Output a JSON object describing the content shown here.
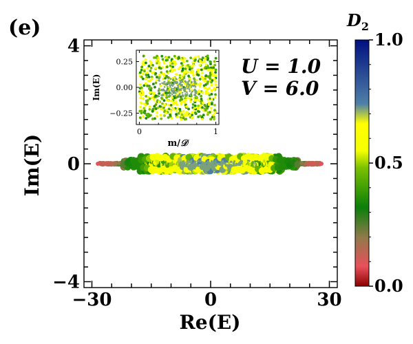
{
  "panel_label": "(e)",
  "params": {
    "U_label": "U = 1.0",
    "V_label": "V = 6.0"
  },
  "colorbar": {
    "title": "D",
    "title_sub": "2",
    "range": [
      0.0,
      1.0
    ],
    "tick_labels": [
      "0.0",
      "0.5",
      "1.0"
    ],
    "colormap_stops": [
      {
        "v": 0.0,
        "c": "#8b0000"
      },
      {
        "v": 0.08,
        "c": "#e8505b"
      },
      {
        "v": 0.2,
        "c": "#8f7a4a"
      },
      {
        "v": 0.32,
        "c": "#0a7f0a"
      },
      {
        "v": 0.48,
        "c": "#7ac000"
      },
      {
        "v": 0.55,
        "c": "#f5ff00"
      },
      {
        "v": 0.66,
        "c": "#ffff00"
      },
      {
        "v": 0.74,
        "c": "#4f80a8"
      },
      {
        "v": 1.0,
        "c": "#001080"
      }
    ]
  },
  "chart_data": [
    {
      "type": "scatter",
      "name": "main",
      "xlabel": "Re(E)",
      "ylabel": "Im(E)",
      "xlim": [
        -32,
        32
      ],
      "ylim": [
        -4.2,
        4.2
      ],
      "x_tick_labels": [
        "−30",
        "0",
        "30"
      ],
      "y_tick_labels": [
        "−4",
        "0",
        "4"
      ],
      "x_ticks": [
        -30,
        0,
        30
      ],
      "y_ticks": [
        -4,
        0,
        4
      ],
      "description_points": "eigenvalues clustered near Im(E)=0; D2 ≈ 0.1–0.2 at |Re(E)| > 22, ≈ 0.35 for 12 < |Re(E)| < 22, ≈ 0.5–0.6 for |Re(E)| < 12, center ≈ 0.7",
      "points": [
        [
          -28.5,
          0.0,
          0.08
        ],
        [
          -27.0,
          0.0,
          0.12
        ],
        [
          -26.0,
          0.01,
          0.12
        ],
        [
          -25.0,
          -0.01,
          0.15
        ],
        [
          -24.0,
          0.0,
          0.18
        ],
        [
          -23.0,
          0.02,
          0.2
        ],
        [
          -22.0,
          -0.02,
          0.25
        ],
        [
          -21.0,
          0.03,
          0.3
        ],
        [
          -20.5,
          0.06,
          0.33
        ],
        [
          -20.0,
          -0.05,
          0.34
        ],
        [
          -19.5,
          0.08,
          0.35
        ],
        [
          -19.0,
          -0.09,
          0.35
        ],
        [
          -18.5,
          0.1,
          0.35
        ],
        [
          -18.0,
          -0.1,
          0.35
        ],
        [
          -17.5,
          0.12,
          0.38
        ],
        [
          -17.0,
          -0.13,
          0.4
        ],
        [
          -16.5,
          0.15,
          0.42
        ],
        [
          -16.0,
          -0.15,
          0.45
        ],
        [
          -15.5,
          0.18,
          0.5
        ],
        [
          -15.0,
          -0.2,
          0.55
        ],
        [
          -14.5,
          0.22,
          0.57
        ],
        [
          -14.0,
          -0.2,
          0.6
        ],
        [
          -13.5,
          0.25,
          0.55
        ],
        [
          -13.0,
          -0.24,
          0.6
        ],
        [
          -12.5,
          0.2,
          0.58
        ],
        [
          -12.0,
          -0.18,
          0.6
        ],
        [
          -11.5,
          0.22,
          0.56
        ],
        [
          -11.0,
          -0.25,
          0.6
        ],
        [
          -10.5,
          0.15,
          0.58
        ],
        [
          -10.0,
          -0.2,
          0.6
        ],
        [
          -9.5,
          0.25,
          0.45
        ],
        [
          -9.0,
          -0.15,
          0.58
        ],
        [
          -8.5,
          0.2,
          0.62
        ],
        [
          -8.0,
          -0.22,
          0.6
        ],
        [
          -7.5,
          0.12,
          0.7
        ],
        [
          -7.0,
          -0.1,
          0.72
        ],
        [
          -6.5,
          0.18,
          0.58
        ],
        [
          -6.0,
          -0.2,
          0.6
        ],
        [
          -5.5,
          0.22,
          0.45
        ],
        [
          -5.0,
          -0.12,
          0.72
        ],
        [
          -4.5,
          0.1,
          0.74
        ],
        [
          -4.0,
          -0.08,
          0.72
        ],
        [
          -3.5,
          0.2,
          0.6
        ],
        [
          -3.0,
          -0.2,
          0.58
        ],
        [
          -2.5,
          0.08,
          0.74
        ],
        [
          -2.0,
          -0.1,
          0.72
        ],
        [
          -1.5,
          0.15,
          0.6
        ],
        [
          -1.0,
          -0.15,
          0.72
        ],
        [
          -0.5,
          0.05,
          0.74
        ],
        [
          0.0,
          -0.05,
          0.72
        ],
        [
          0.5,
          0.12,
          0.6
        ],
        [
          1.0,
          -0.14,
          0.72
        ],
        [
          1.5,
          0.08,
          0.74
        ],
        [
          2.0,
          -0.1,
          0.6
        ],
        [
          2.5,
          0.2,
          0.58
        ],
        [
          3.0,
          -0.2,
          0.72
        ],
        [
          3.5,
          0.1,
          0.74
        ],
        [
          4.0,
          -0.08,
          0.6
        ],
        [
          4.5,
          0.22,
          0.45
        ],
        [
          5.0,
          -0.12,
          0.72
        ],
        [
          5.5,
          0.15,
          0.6
        ],
        [
          6.0,
          -0.2,
          0.58
        ],
        [
          6.5,
          0.2,
          0.62
        ],
        [
          7.0,
          -0.1,
          0.6
        ],
        [
          7.5,
          0.25,
          0.45
        ],
        [
          8.0,
          -0.22,
          0.6
        ],
        [
          8.5,
          0.18,
          0.58
        ],
        [
          9.0,
          -0.15,
          0.6
        ],
        [
          9.5,
          0.25,
          0.55
        ],
        [
          10.0,
          -0.2,
          0.6
        ],
        [
          10.5,
          0.2,
          0.58
        ],
        [
          11.0,
          -0.25,
          0.55
        ],
        [
          11.5,
          0.22,
          0.6
        ],
        [
          12.0,
          -0.18,
          0.45
        ],
        [
          12.5,
          0.2,
          0.58
        ],
        [
          13.0,
          -0.24,
          0.6
        ],
        [
          13.5,
          0.25,
          0.55
        ],
        [
          14.0,
          -0.2,
          0.6
        ],
        [
          14.5,
          0.22,
          0.57
        ],
        [
          15.0,
          -0.2,
          0.55
        ],
        [
          15.5,
          0.18,
          0.45
        ],
        [
          16.0,
          -0.15,
          0.42
        ],
        [
          16.5,
          0.15,
          0.38
        ],
        [
          17.0,
          -0.13,
          0.36
        ],
        [
          17.5,
          0.12,
          0.35
        ],
        [
          18.0,
          -0.1,
          0.35
        ],
        [
          18.5,
          0.1,
          0.35
        ],
        [
          19.0,
          -0.09,
          0.35
        ],
        [
          19.5,
          0.08,
          0.34
        ],
        [
          20.0,
          -0.05,
          0.33
        ],
        [
          21.0,
          0.03,
          0.3
        ],
        [
          22.0,
          -0.02,
          0.25
        ],
        [
          23.0,
          0.02,
          0.2
        ],
        [
          24.0,
          0.0,
          0.15
        ],
        [
          25.0,
          -0.01,
          0.12
        ],
        [
          26.0,
          0.01,
          0.1
        ],
        [
          28.0,
          0.0,
          0.08
        ]
      ]
    },
    {
      "type": "scatter",
      "name": "inset",
      "xlabel": "m/D",
      "ylabel": "Im(E)",
      "xlim": [
        -0.04,
        1.04
      ],
      "ylim": [
        -0.36,
        0.36
      ],
      "x_tick_labels": [
        "0",
        "1"
      ],
      "y_tick_labels": [
        "0.25",
        "0.00",
        "−0.25"
      ],
      "x_ticks": [
        0,
        1
      ],
      "y_ticks": [
        0.25,
        0.0,
        -0.25
      ],
      "description_points": "uniform band over m/D in [0,1] and Im(E) in [-0.3,0.3]; yellow/green mix with blue-gray core near Im(E)=0, center m/D 0.3–0.7"
    }
  ]
}
